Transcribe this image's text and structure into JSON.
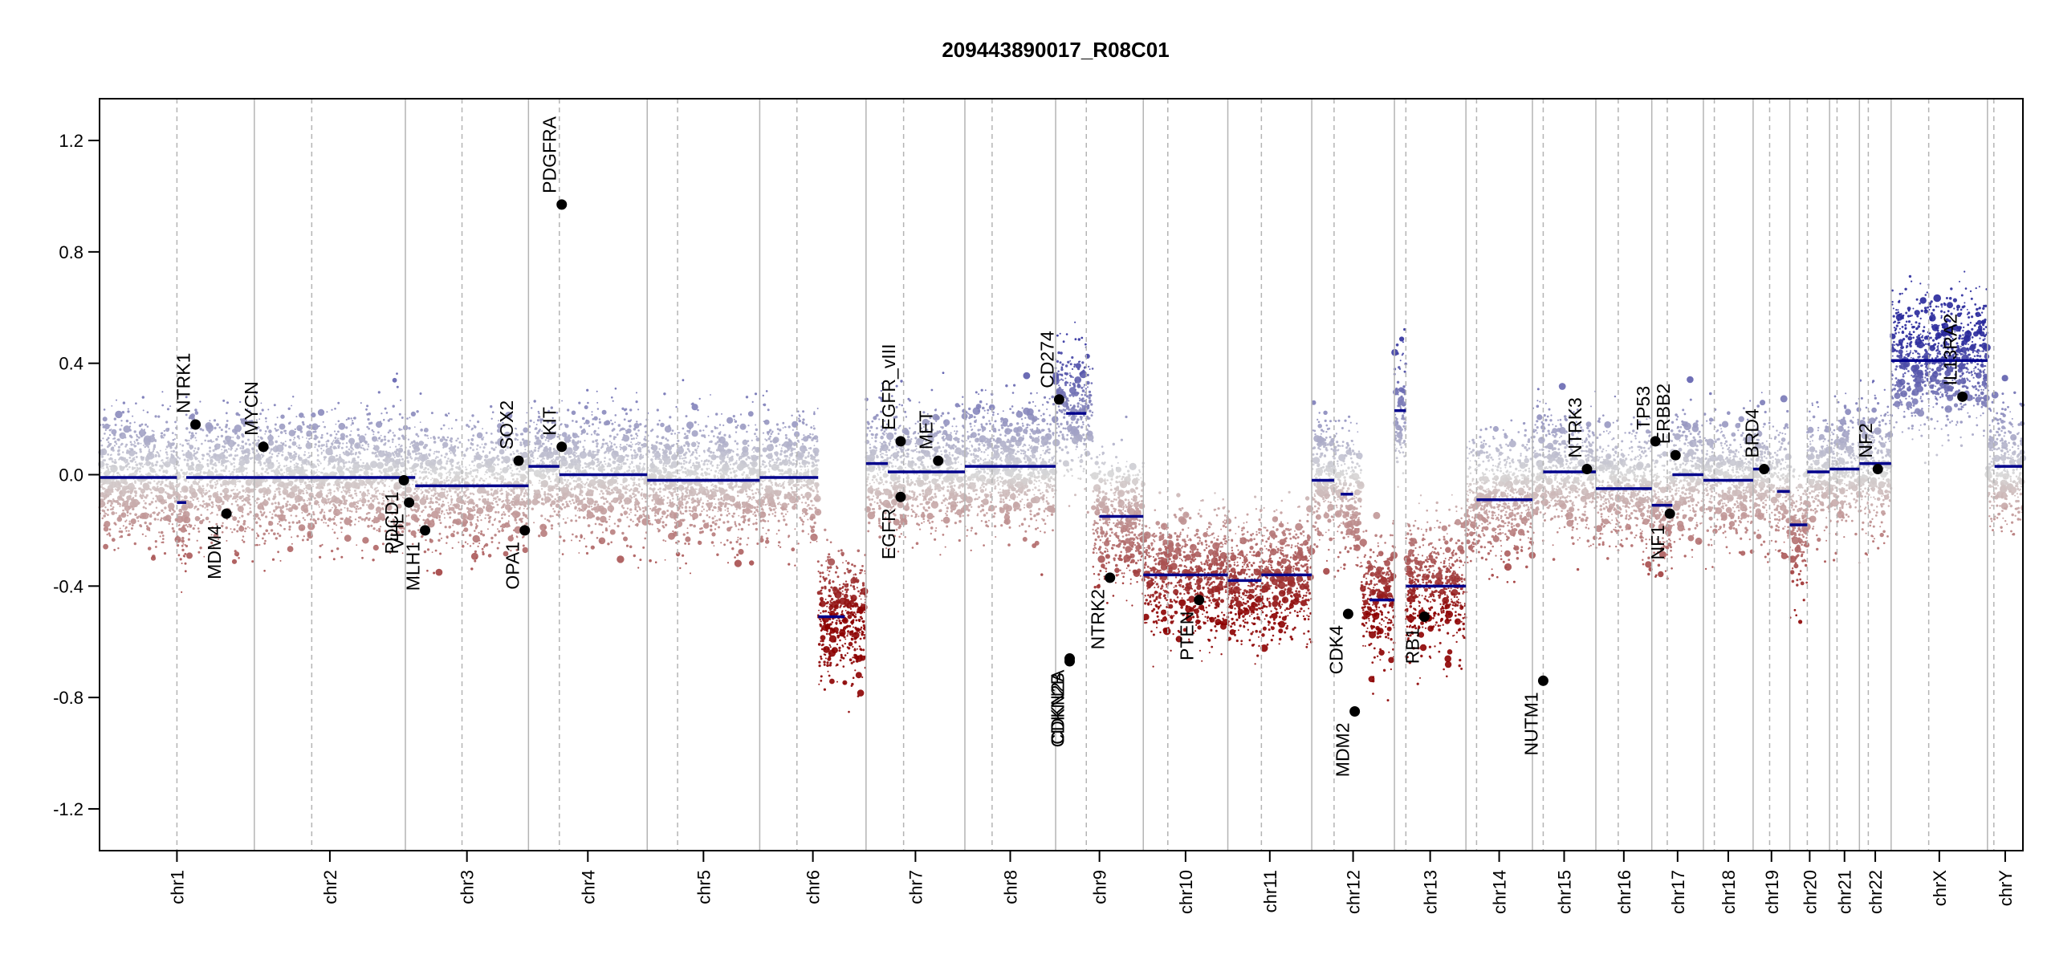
{
  "chart_data": {
    "type": "scatter",
    "title": "209443890017_R08C01",
    "xlabel": "",
    "ylabel": "",
    "ylim": [
      -1.35,
      1.35
    ],
    "y_ticks": [
      1.2,
      0.8,
      0.4,
      0.0,
      -0.4,
      -0.8,
      -1.2
    ],
    "y_tick_labels": [
      "1.2",
      "0.8",
      "0.4",
      "0.0",
      "-0.4",
      "-0.8",
      "-1.2"
    ],
    "grid": false,
    "legend": "none",
    "colors": {
      "gain": "#2a2aa0",
      "loss": "#8b0000",
      "neutral": "#c8c8c8",
      "segment": "#00008b",
      "boundary": "#b4b4b4",
      "gene_point": "#000000"
    },
    "chromosomes": [
      {
        "name": "chr1",
        "size": 249,
        "centromere": 0.5
      },
      {
        "name": "chr2",
        "size": 243,
        "centromere": 0.38
      },
      {
        "name": "chr3",
        "size": 198,
        "centromere": 0.46
      },
      {
        "name": "chr4",
        "size": 191,
        "centromere": 0.26
      },
      {
        "name": "chr5",
        "size": 181,
        "centromere": 0.27
      },
      {
        "name": "chr6",
        "size": 171,
        "centromere": 0.35
      },
      {
        "name": "chr7",
        "size": 159,
        "centromere": 0.38
      },
      {
        "name": "chr8",
        "size": 146,
        "centromere": 0.3
      },
      {
        "name": "chr9",
        "size": 141,
        "centromere": 0.35
      },
      {
        "name": "chr10",
        "size": 136,
        "centromere": 0.29
      },
      {
        "name": "chr11",
        "size": 135,
        "centromere": 0.4
      },
      {
        "name": "chr12",
        "size": 133,
        "centromere": 0.27
      },
      {
        "name": "chr13",
        "size": 115,
        "centromere": 0.16
      },
      {
        "name": "chr14",
        "size": 107,
        "centromere": 0.16
      },
      {
        "name": "chr15",
        "size": 102,
        "centromere": 0.17
      },
      {
        "name": "chr16",
        "size": 90,
        "centromere": 0.4
      },
      {
        "name": "chr17",
        "size": 83,
        "centromere": 0.3
      },
      {
        "name": "chr18",
        "size": 80,
        "centromere": 0.22
      },
      {
        "name": "chr19",
        "size": 59,
        "centromere": 0.45
      },
      {
        "name": "chr20",
        "size": 64,
        "centromere": 0.44
      },
      {
        "name": "chr21",
        "size": 48,
        "centromere": 0.25
      },
      {
        "name": "chr22",
        "size": 51,
        "centromere": 0.28
      },
      {
        "name": "chrX",
        "size": 155,
        "centromere": 0.39
      },
      {
        "name": "chrY",
        "size": 57,
        "centromere": 0.18
      }
    ],
    "segments": [
      {
        "chr": "chr1",
        "start": 0.0,
        "end": 0.5,
        "value": -0.01
      },
      {
        "chr": "chr1",
        "start": 0.5,
        "end": 0.56,
        "value": -0.1
      },
      {
        "chr": "chr1",
        "start": 0.56,
        "end": 1.0,
        "value": -0.01
      },
      {
        "chr": "chr2",
        "start": 0.0,
        "end": 1.0,
        "value": -0.01
      },
      {
        "chr": "chr3",
        "start": 0.0,
        "end": 0.08,
        "value": -0.01
      },
      {
        "chr": "chr3",
        "start": 0.08,
        "end": 1.0,
        "value": -0.04
      },
      {
        "chr": "chr4",
        "start": 0.0,
        "end": 0.26,
        "value": 0.03
      },
      {
        "chr": "chr4",
        "start": 0.26,
        "end": 1.0,
        "value": 0.0
      },
      {
        "chr": "chr5",
        "start": 0.0,
        "end": 1.0,
        "value": -0.02
      },
      {
        "chr": "chr6",
        "start": 0.0,
        "end": 0.55,
        "value": -0.01
      },
      {
        "chr": "chr6",
        "start": 0.55,
        "end": 0.8,
        "value": -0.51
      },
      {
        "chr": "chr7",
        "start": 0.0,
        "end": 0.22,
        "value": 0.04
      },
      {
        "chr": "chr7",
        "start": 0.22,
        "end": 1.0,
        "value": 0.01
      },
      {
        "chr": "chr8",
        "start": 0.0,
        "end": 1.0,
        "value": 0.03
      },
      {
        "chr": "chr9",
        "start": 0.0,
        "end": 0.05,
        "value": 0.26
      },
      {
        "chr": "chr9",
        "start": 0.12,
        "end": 0.35,
        "value": 0.22
      },
      {
        "chr": "chr9",
        "start": 0.5,
        "end": 1.0,
        "value": -0.15
      },
      {
        "chr": "chr10",
        "start": 0.0,
        "end": 1.0,
        "value": -0.36
      },
      {
        "chr": "chr11",
        "start": 0.0,
        "end": 0.4,
        "value": -0.38
      },
      {
        "chr": "chr11",
        "start": 0.4,
        "end": 1.0,
        "value": -0.36
      },
      {
        "chr": "chr12",
        "start": 0.0,
        "end": 0.27,
        "value": -0.02
      },
      {
        "chr": "chr12",
        "start": 0.35,
        "end": 0.5,
        "value": -0.07
      },
      {
        "chr": "chr12",
        "start": 0.7,
        "end": 1.0,
        "value": -0.45
      },
      {
        "chr": "chr13",
        "start": 0.0,
        "end": 0.16,
        "value": 0.23
      },
      {
        "chr": "chr13",
        "start": 0.16,
        "end": 1.0,
        "value": -0.4
      },
      {
        "chr": "chr14",
        "start": 0.16,
        "end": 1.0,
        "value": -0.09
      },
      {
        "chr": "chr15",
        "start": 0.17,
        "end": 1.0,
        "value": 0.01
      },
      {
        "chr": "chr16",
        "start": 0.0,
        "end": 1.0,
        "value": -0.05
      },
      {
        "chr": "chr17",
        "start": 0.0,
        "end": 0.4,
        "value": -0.11
      },
      {
        "chr": "chr17",
        "start": 0.4,
        "end": 1.0,
        "value": -0.0
      },
      {
        "chr": "chr18",
        "start": 0.0,
        "end": 1.0,
        "value": -0.02
      },
      {
        "chr": "chr19",
        "start": 0.0,
        "end": 0.45,
        "value": 0.02
      },
      {
        "chr": "chr19",
        "start": 0.65,
        "end": 1.0,
        "value": -0.06
      },
      {
        "chr": "chr20",
        "start": 0.0,
        "end": 0.44,
        "value": -0.18
      },
      {
        "chr": "chr20",
        "start": 0.44,
        "end": 1.0,
        "value": 0.01
      },
      {
        "chr": "chr21",
        "start": 0.0,
        "end": 1.0,
        "value": 0.02
      },
      {
        "chr": "chr22",
        "start": 0.0,
        "end": 1.0,
        "value": 0.04
      },
      {
        "chr": "chrX",
        "start": 0.0,
        "end": 1.0,
        "value": 0.41
      },
      {
        "chr": "chrY",
        "start": 0.2,
        "end": 1.0,
        "value": 0.03
      }
    ],
    "genes": [
      {
        "name": "NTRK1",
        "chr": "chr1",
        "pos": 0.62,
        "value": 0.18
      },
      {
        "name": "MDM4",
        "chr": "chr1",
        "pos": 0.82,
        "value": -0.14
      },
      {
        "name": "MYCN",
        "chr": "chr2",
        "pos": 0.06,
        "value": 0.1
      },
      {
        "name": "PDCD1",
        "chr": "chr2",
        "pos": 0.99,
        "value": -0.02
      },
      {
        "name": "VHL",
        "chr": "chr3",
        "pos": 0.03,
        "value": -0.1
      },
      {
        "name": "MLH1",
        "chr": "chr3",
        "pos": 0.16,
        "value": -0.2
      },
      {
        "name": "SOX2",
        "chr": "chr3",
        "pos": 0.92,
        "value": 0.05
      },
      {
        "name": "OPA1",
        "chr": "chr3",
        "pos": 0.97,
        "value": -0.2
      },
      {
        "name": "KIT",
        "chr": "chr4",
        "pos": 0.28,
        "value": 0.1
      },
      {
        "name": "PDGFRA",
        "chr": "chr4",
        "pos": 0.28,
        "value": 0.97
      },
      {
        "name": "EGFR_vIII",
        "chr": "chr7",
        "pos": 0.35,
        "value": 0.12
      },
      {
        "name": "EGFR",
        "chr": "chr7",
        "pos": 0.35,
        "value": -0.08
      },
      {
        "name": "MET",
        "chr": "chr7",
        "pos": 0.73,
        "value": 0.05
      },
      {
        "name": "CD274",
        "chr": "chr9",
        "pos": 0.04,
        "value": 0.27
      },
      {
        "name": "CDKN2A",
        "chr": "chr9",
        "pos": 0.16,
        "value": -0.66
      },
      {
        "name": "CDKN2B",
        "chr": "chr9",
        "pos": 0.16,
        "value": -0.67
      },
      {
        "name": "NTRK2",
        "chr": "chr9",
        "pos": 0.62,
        "value": -0.37
      },
      {
        "name": "PTEN",
        "chr": "chr10",
        "pos": 0.66,
        "value": -0.45
      },
      {
        "name": "CDK4",
        "chr": "chr12",
        "pos": 0.44,
        "value": -0.5
      },
      {
        "name": "MDM2",
        "chr": "chr12",
        "pos": 0.52,
        "value": -0.85
      },
      {
        "name": "RB1",
        "chr": "chr13",
        "pos": 0.42,
        "value": -0.51
      },
      {
        "name": "NUTM1",
        "chr": "chr15",
        "pos": 0.17,
        "value": -0.74
      },
      {
        "name": "NTRK3",
        "chr": "chr15",
        "pos": 0.86,
        "value": 0.02
      },
      {
        "name": "TP53",
        "chr": "chr17",
        "pos": 0.07,
        "value": 0.12
      },
      {
        "name": "NF1",
        "chr": "chr17",
        "pos": 0.35,
        "value": -0.14
      },
      {
        "name": "ERBB2",
        "chr": "chr17",
        "pos": 0.46,
        "value": 0.07
      },
      {
        "name": "BRD4",
        "chr": "chr19",
        "pos": 0.3,
        "value": 0.02
      },
      {
        "name": "NF2",
        "chr": "chr22",
        "pos": 0.58,
        "value": 0.02
      },
      {
        "name": "IL13RA2",
        "chr": "chrX",
        "pos": 0.74,
        "value": 0.28
      }
    ]
  }
}
